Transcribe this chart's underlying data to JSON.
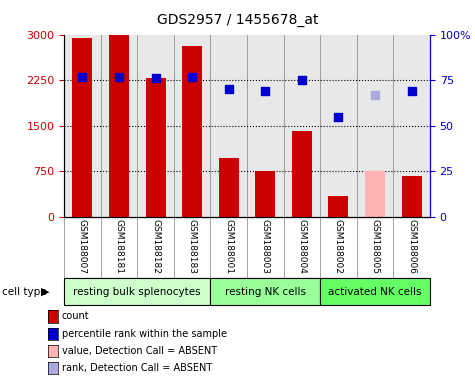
{
  "title": "GDS2957 / 1455678_at",
  "samples": [
    "GSM188007",
    "GSM188181",
    "GSM188182",
    "GSM188183",
    "GSM188001",
    "GSM188003",
    "GSM188004",
    "GSM188002",
    "GSM188005",
    "GSM188006"
  ],
  "bar_values": [
    2950,
    2990,
    2290,
    2810,
    975,
    760,
    1420,
    350,
    760,
    680
  ],
  "bar_colors": [
    "#cc0000",
    "#cc0000",
    "#cc0000",
    "#cc0000",
    "#cc0000",
    "#cc0000",
    "#cc0000",
    "#cc0000",
    "#ffb3b3",
    "#cc0000"
  ],
  "dot_pct": [
    77,
    77,
    76,
    77,
    70,
    69,
    75,
    55,
    67,
    69
  ],
  "dot_colors": [
    "#0000cc",
    "#0000cc",
    "#0000cc",
    "#0000cc",
    "#0000cc",
    "#0000cc",
    "#0000cc",
    "#0000cc",
    "#aaaadd",
    "#0000cc"
  ],
  "ylim_left": [
    0,
    3000
  ],
  "ylim_right": [
    0,
    100
  ],
  "yticks_left": [
    0,
    750,
    1500,
    2250,
    3000
  ],
  "ytick_labels_left": [
    "0",
    "750",
    "1500",
    "2250",
    "3000"
  ],
  "yticks_right": [
    0,
    25,
    50,
    75,
    100
  ],
  "ytick_labels_right": [
    "0",
    "25",
    "50",
    "75",
    "100%"
  ],
  "cell_groups": [
    {
      "label": "resting bulk splenocytes",
      "start": 0,
      "end": 4,
      "color": "#ccffcc"
    },
    {
      "label": "resting NK cells",
      "start": 4,
      "end": 7,
      "color": "#99ff99"
    },
    {
      "label": "activated NK cells",
      "start": 7,
      "end": 10,
      "color": "#66ff66"
    }
  ],
  "legend_items": [
    {
      "label": "count",
      "color": "#cc0000"
    },
    {
      "label": "percentile rank within the sample",
      "color": "#0000cc"
    },
    {
      "label": "value, Detection Call = ABSENT",
      "color": "#ffb3b3"
    },
    {
      "label": "rank, Detection Call = ABSENT",
      "color": "#aaaadd"
    }
  ],
  "cell_type_label": "cell type",
  "bar_width": 0.55,
  "plot_bg": "#e8e8e8",
  "tick_label_color_left": "#cc0000",
  "tick_label_color_right": "#0000cc"
}
